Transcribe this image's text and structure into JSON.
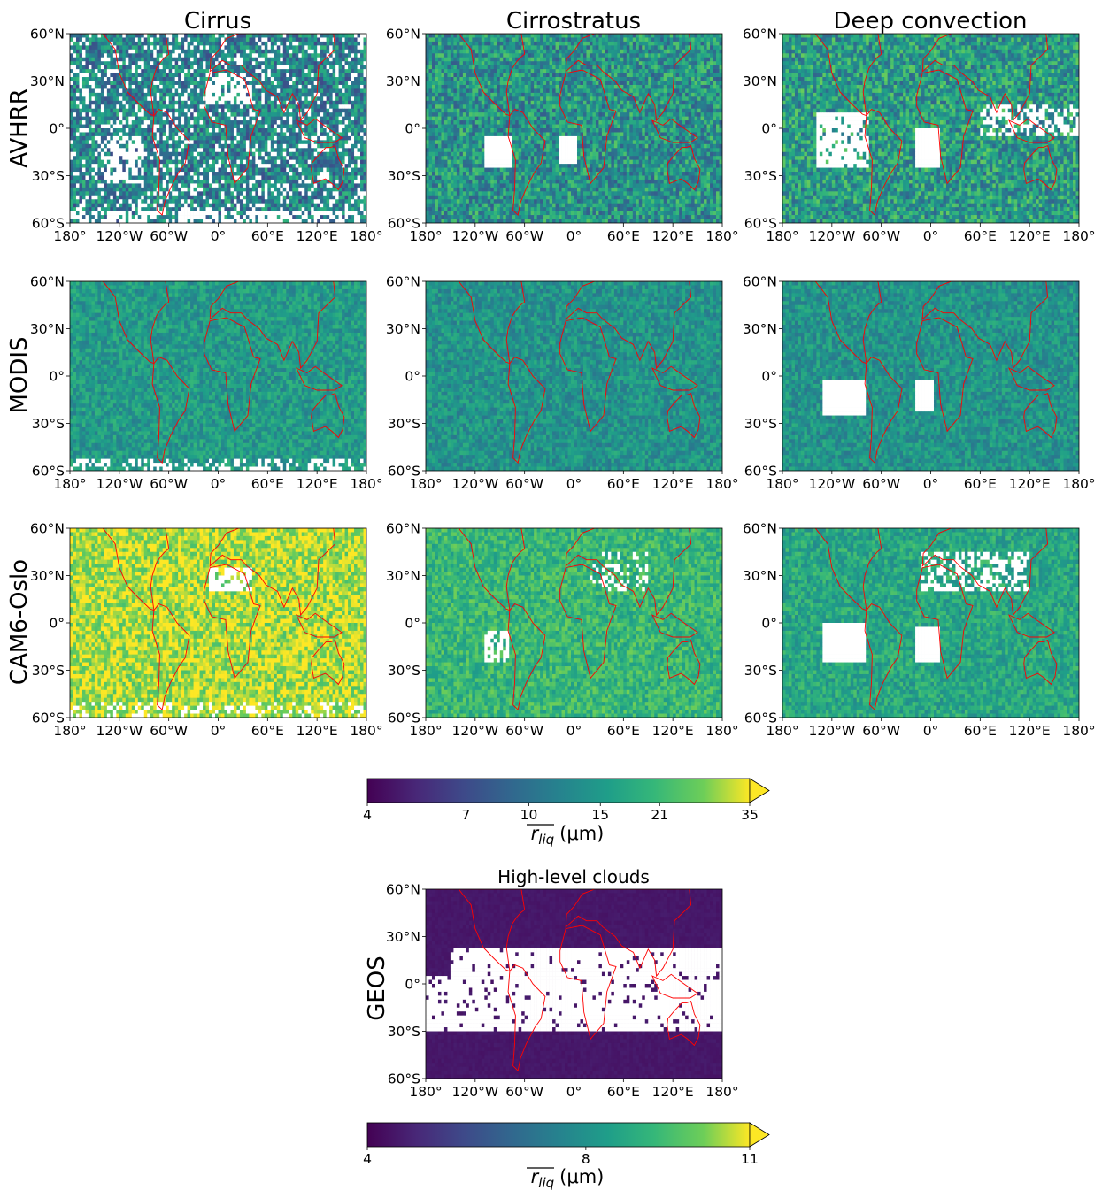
{
  "chart_data": {
    "type": "heatmap",
    "column_titles": [
      "Cirrus",
      "Cirrostratus",
      "Deep convection"
    ],
    "row_labels": [
      "AVHRR",
      "MODIS",
      "CAM6-Oslo"
    ],
    "x_ticks": [
      "180°",
      "120°W",
      "60°W",
      "0°",
      "60°E",
      "120°E",
      "180°"
    ],
    "y_ticks": [
      "60°N",
      "30°N",
      "0°",
      "30°S",
      "60°S"
    ],
    "x_range": [
      -180,
      180
    ],
    "y_range": [
      -60,
      60
    ],
    "coastline_color": "#ff0000",
    "colormap": "viridis",
    "panels": [
      {
        "row": "AVHRR",
        "column": "Cirrus",
        "typical_value": 12
      },
      {
        "row": "AVHRR",
        "column": "Cirrostratus",
        "typical_value": 14
      },
      {
        "row": "AVHRR",
        "column": "Deep convection",
        "typical_value": 15
      },
      {
        "row": "MODIS",
        "column": "Cirrus",
        "typical_value": 15
      },
      {
        "row": "MODIS",
        "column": "Cirrostratus",
        "typical_value": 14
      },
      {
        "row": "MODIS",
        "column": "Deep convection",
        "typical_value": 14
      },
      {
        "row": "CAM6-Oslo",
        "column": "Cirrus",
        "typical_value": 30
      },
      {
        "row": "CAM6-Oslo",
        "column": "Cirrostratus",
        "typical_value": 20
      },
      {
        "row": "CAM6-Oslo",
        "column": "Deep convection",
        "typical_value": 17
      }
    ],
    "colorbar_main": {
      "ticks": [
        "4",
        "7",
        "10",
        "15",
        "21",
        "35"
      ],
      "range": [
        4,
        35
      ],
      "scale": "log",
      "label_base": "r",
      "label_sub": "liq",
      "label_unit": "(μm)",
      "extend": "max"
    },
    "geos_panel": {
      "title": "High-level clouds",
      "row_label": "GEOS",
      "typical_value": 4.5,
      "no_data_band": [
        -30,
        22
      ],
      "colorbar": {
        "ticks": [
          "4",
          "8",
          "11"
        ],
        "range": [
          4,
          11
        ],
        "label_base": "r",
        "label_sub": "liq",
        "label_unit": "(μm)",
        "extend": "max"
      }
    }
  }
}
